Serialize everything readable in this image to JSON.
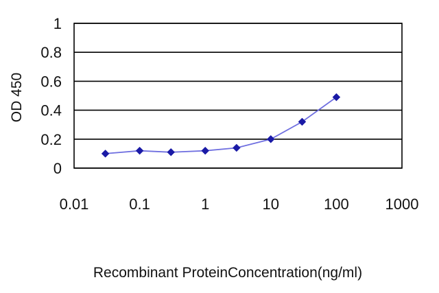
{
  "chart_data": {
    "type": "line",
    "title": "",
    "xlabel": "Recombinant ProteinConcentration(ng/ml)",
    "ylabel": "OD 450",
    "x_scale": "log",
    "xlim": [
      0.01,
      1000
    ],
    "ylim": [
      0,
      1
    ],
    "x_ticks": [
      "0.01",
      "0.1",
      "1",
      "10",
      "100",
      "1000"
    ],
    "y_ticks": [
      "0",
      "0.2",
      "0.4",
      "0.6",
      "0.8",
      "1"
    ],
    "grid": "horizontal",
    "legend": "none",
    "series": [
      {
        "x": [
          0.03,
          0.1,
          0.3,
          1,
          3,
          10,
          30,
          100
        ],
        "y": [
          0.1,
          0.12,
          0.11,
          0.12,
          0.14,
          0.2,
          0.32,
          0.49
        ],
        "color": "#1a1aa6",
        "marker": "diamond"
      }
    ]
  }
}
